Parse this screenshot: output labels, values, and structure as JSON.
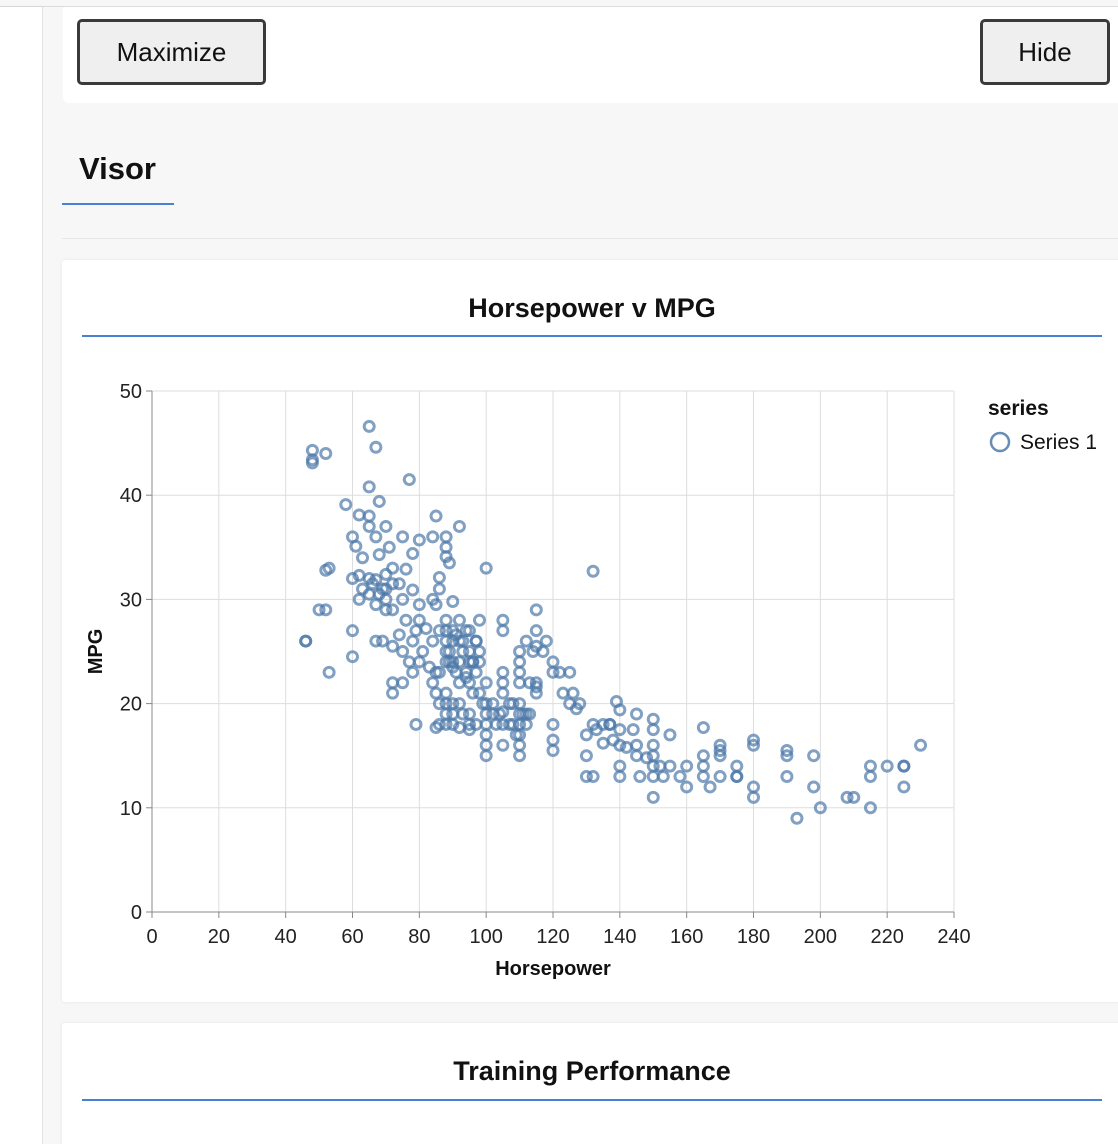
{
  "controls": {
    "maximize_label": "Maximize",
    "hide_label": "Hide"
  },
  "visor": {
    "tab_label": "Visor"
  },
  "cards": {
    "scatter_title": "Horsepower v MPG",
    "training_title": "Training Performance"
  },
  "colors": {
    "accent": "#4a7fd6",
    "point_stroke": "#4c78a8",
    "grid": "#dddddd",
    "axis": "#888888"
  },
  "chart_data": {
    "type": "scatter",
    "title": "Horsepower v MPG",
    "xlabel": "Horsepower",
    "ylabel": "MPG",
    "xlim": [
      0,
      240
    ],
    "ylim": [
      0,
      50
    ],
    "x_ticks": [
      0,
      20,
      40,
      60,
      80,
      100,
      120,
      140,
      160,
      180,
      200,
      220,
      240
    ],
    "y_ticks": [
      0,
      10,
      20,
      30,
      40,
      50
    ],
    "grid": true,
    "legend": {
      "title": "series",
      "position": "top-right",
      "entries": [
        "Series 1"
      ]
    },
    "series": [
      {
        "name": "Series 1",
        "points": [
          [
            46,
            26
          ],
          [
            46,
            26
          ],
          [
            48,
            43.4
          ],
          [
            48,
            44.3
          ],
          [
            48,
            43.1
          ],
          [
            50,
            29
          ],
          [
            52,
            29
          ],
          [
            52,
            32.8
          ],
          [
            53,
            33
          ],
          [
            53,
            23
          ],
          [
            52,
            44
          ],
          [
            60,
            24.5
          ],
          [
            60,
            27
          ],
          [
            58,
            39.1
          ],
          [
            65,
            46.6
          ],
          [
            65,
            40.8
          ],
          [
            67,
            44.6
          ],
          [
            77,
            41.5
          ],
          [
            85,
            38
          ],
          [
            92,
            37
          ],
          [
            100,
            33
          ],
          [
            132,
            32.7
          ],
          [
            60,
            36
          ],
          [
            61,
            35.1
          ],
          [
            65,
            37
          ],
          [
            65,
            38
          ],
          [
            63,
            34
          ],
          [
            68,
            39.4
          ],
          [
            62,
            38.1
          ],
          [
            70,
            37
          ],
          [
            67,
            36
          ],
          [
            68,
            34.3
          ],
          [
            71,
            35
          ],
          [
            69,
            31
          ],
          [
            72,
            33
          ],
          [
            74,
            31.5
          ],
          [
            75,
            36
          ],
          [
            76,
            32.9
          ],
          [
            78,
            34.4
          ],
          [
            80,
            35.7
          ],
          [
            84,
            36
          ],
          [
            88,
            35
          ],
          [
            88,
            34.1
          ],
          [
            88,
            36
          ],
          [
            86,
            32.1
          ],
          [
            89,
            33.5
          ],
          [
            90,
            29.8
          ],
          [
            60,
            32
          ],
          [
            62,
            32.3
          ],
          [
            63,
            31
          ],
          [
            65,
            32
          ],
          [
            66,
            31.5
          ],
          [
            67,
            31.9
          ],
          [
            68,
            30.5
          ],
          [
            70,
            31
          ],
          [
            70,
            32.4
          ],
          [
            72,
            31.5
          ],
          [
            75,
            30
          ],
          [
            78,
            30.9
          ],
          [
            80,
            29.5
          ],
          [
            84,
            30
          ],
          [
            85,
            29.5
          ],
          [
            86,
            31
          ],
          [
            88,
            28
          ],
          [
            92,
            28
          ],
          [
            95,
            27
          ],
          [
            97,
            26
          ],
          [
            98,
            28
          ],
          [
            62,
            30
          ],
          [
            65,
            30.5
          ],
          [
            67,
            29.5
          ],
          [
            70,
            29
          ],
          [
            70,
            30
          ],
          [
            72,
            29
          ],
          [
            74,
            26.6
          ],
          [
            76,
            28
          ],
          [
            78,
            26
          ],
          [
            79,
            27
          ],
          [
            80,
            28
          ],
          [
            82,
            27.2
          ],
          [
            84,
            26
          ],
          [
            86,
            27
          ],
          [
            88,
            26
          ],
          [
            88,
            27
          ],
          [
            90,
            26
          ],
          [
            90,
            27
          ],
          [
            92,
            26
          ],
          [
            93,
            25
          ],
          [
            95,
            25
          ],
          [
            96,
            24
          ],
          [
            67,
            26
          ],
          [
            69,
            26
          ],
          [
            72,
            25.5
          ],
          [
            75,
            25
          ],
          [
            77,
            24
          ],
          [
            80,
            24
          ],
          [
            81,
            25
          ],
          [
            83,
            23.5
          ],
          [
            85,
            23
          ],
          [
            86,
            23
          ],
          [
            88,
            24
          ],
          [
            89,
            25
          ],
          [
            90,
            24
          ],
          [
            91,
            23
          ],
          [
            92,
            22
          ],
          [
            94,
            22.5
          ],
          [
            95,
            22
          ],
          [
            97,
            23
          ],
          [
            98,
            24
          ],
          [
            100,
            22
          ],
          [
            72,
            22
          ],
          [
            72,
            21
          ],
          [
            75,
            22
          ],
          [
            78,
            23
          ],
          [
            79,
            18
          ],
          [
            84,
            22
          ],
          [
            85,
            21
          ],
          [
            86,
            20
          ],
          [
            88,
            21
          ],
          [
            88,
            20
          ],
          [
            88,
            19
          ],
          [
            88,
            18
          ],
          [
            90,
            20
          ],
          [
            90,
            19
          ],
          [
            90,
            18
          ],
          [
            92,
            20
          ],
          [
            93,
            19
          ],
          [
            95,
            19
          ],
          [
            95,
            18
          ],
          [
            97,
            18
          ],
          [
            100,
            18
          ],
          [
            100,
            19
          ],
          [
            100,
            20
          ],
          [
            102,
            20
          ],
          [
            104,
            19
          ],
          [
            105,
            21
          ],
          [
            107,
            20
          ],
          [
            108,
            20
          ],
          [
            110,
            19
          ],
          [
            110,
            20
          ],
          [
            85,
            17.7
          ],
          [
            86,
            18
          ],
          [
            92,
            17.7
          ],
          [
            95,
            17.5
          ],
          [
            100,
            17
          ],
          [
            100,
            16
          ],
          [
            100,
            15
          ],
          [
            105,
            16
          ],
          [
            105,
            18
          ],
          [
            105,
            19.2
          ],
          [
            110,
            18
          ],
          [
            110,
            17
          ],
          [
            110,
            16
          ],
          [
            110,
            15
          ],
          [
            112,
            18
          ],
          [
            112,
            19
          ],
          [
            115,
            21.6
          ],
          [
            115,
            22
          ],
          [
            113,
            22
          ],
          [
            110,
            22
          ],
          [
            105,
            22
          ],
          [
            105,
            23
          ],
          [
            110,
            23
          ],
          [
            110,
            24
          ],
          [
            110,
            25
          ],
          [
            112,
            26
          ],
          [
            114,
            25
          ],
          [
            115,
            25.5
          ],
          [
            115,
            27
          ],
          [
            115,
            29
          ],
          [
            105,
            27
          ],
          [
            105,
            28
          ],
          [
            120,
            24
          ],
          [
            122,
            23
          ],
          [
            125,
            23
          ],
          [
            125,
            20
          ],
          [
            127,
            19.5
          ],
          [
            130,
            17
          ],
          [
            132,
            18
          ],
          [
            133,
            17.5
          ],
          [
            120,
            18
          ],
          [
            120,
            16.5
          ],
          [
            120,
            15.5
          ],
          [
            130,
            13
          ],
          [
            132,
            13
          ],
          [
            130,
            15
          ],
          [
            135,
            16.2
          ],
          [
            137,
            18
          ],
          [
            138,
            16.5
          ],
          [
            139,
            20.2
          ],
          [
            140,
            19.4
          ],
          [
            140,
            17.5
          ],
          [
            140,
            16
          ],
          [
            140,
            13
          ],
          [
            140,
            14
          ],
          [
            142,
            15.8
          ],
          [
            144,
            17.5
          ],
          [
            145,
            19
          ],
          [
            145,
            16
          ],
          [
            145,
            15
          ],
          [
            146,
            13
          ],
          [
            148,
            14.8
          ],
          [
            150,
            18.5
          ],
          [
            150,
            17.5
          ],
          [
            150,
            16
          ],
          [
            150,
            15
          ],
          [
            150,
            14
          ],
          [
            150,
            13
          ],
          [
            150,
            11
          ],
          [
            152,
            14
          ],
          [
            153,
            13
          ],
          [
            155,
            14
          ],
          [
            155,
            17
          ],
          [
            158,
            13
          ],
          [
            160,
            12
          ],
          [
            160,
            14
          ],
          [
            165,
            17.7
          ],
          [
            165,
            15
          ],
          [
            165,
            14
          ],
          [
            165,
            13
          ],
          [
            167,
            12
          ],
          [
            170,
            16
          ],
          [
            170,
            15.5
          ],
          [
            170,
            15
          ],
          [
            170,
            13
          ],
          [
            175,
            14
          ],
          [
            175,
            13
          ],
          [
            175,
            13
          ],
          [
            180,
            16.5
          ],
          [
            180,
            16
          ],
          [
            180,
            12
          ],
          [
            180,
            11
          ],
          [
            190,
            15.5
          ],
          [
            190,
            15
          ],
          [
            190,
            13
          ],
          [
            193,
            9
          ],
          [
            198,
            15
          ],
          [
            198,
            12
          ],
          [
            200,
            10
          ],
          [
            208,
            11
          ],
          [
            210,
            11
          ],
          [
            215,
            14
          ],
          [
            215,
            13
          ],
          [
            215,
            10
          ],
          [
            220,
            14
          ],
          [
            225,
            14
          ],
          [
            225,
            14
          ],
          [
            225,
            12
          ],
          [
            230,
            16
          ],
          [
            91,
            26.6
          ],
          [
            93,
            26
          ],
          [
            94,
            27
          ],
          [
            95,
            24
          ],
          [
            96,
            24
          ],
          [
            97,
            26
          ],
          [
            98,
            25
          ],
          [
            88,
            25
          ],
          [
            89,
            24
          ],
          [
            90,
            23.5
          ],
          [
            92,
            24
          ],
          [
            94,
            23
          ],
          [
            96,
            21
          ],
          [
            98,
            21
          ],
          [
            99,
            20
          ],
          [
            102,
            19
          ],
          [
            103,
            18
          ],
          [
            107,
            18
          ],
          [
            108,
            18
          ],
          [
            109,
            17
          ],
          [
            111,
            19
          ],
          [
            113,
            19
          ],
          [
            115,
            21
          ],
          [
            117,
            25
          ],
          [
            118,
            26
          ],
          [
            120,
            23
          ],
          [
            123,
            21
          ],
          [
            126,
            21
          ],
          [
            128,
            20
          ],
          [
            135,
            18
          ],
          [
            137,
            18
          ]
        ]
      }
    ]
  }
}
